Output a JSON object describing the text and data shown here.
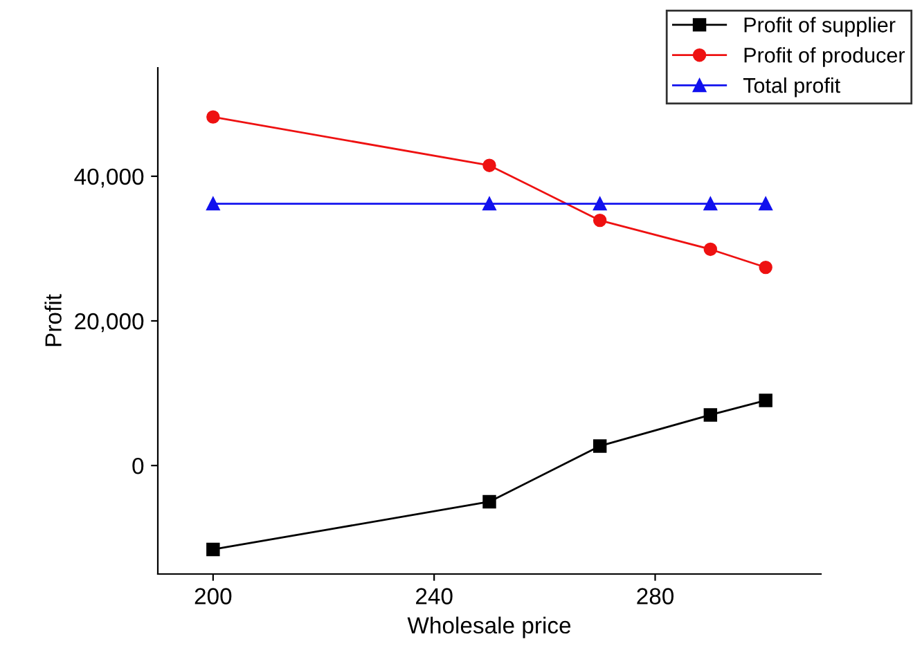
{
  "chart_data": {
    "type": "line",
    "xlabel": "Wholesale price",
    "ylabel": "Profit",
    "x": [
      200,
      250,
      270,
      290,
      300
    ],
    "xlim": [
      190,
      310
    ],
    "xticks": [
      200,
      240,
      280
    ],
    "ylim": [
      -15000,
      55000
    ],
    "yticks": [
      {
        "value": 0,
        "label": "0"
      },
      {
        "value": 20000,
        "label": "20,000"
      },
      {
        "value": 40000,
        "label": "40,000"
      }
    ],
    "series": [
      {
        "name": "Profit of supplier",
        "color": "#000000",
        "marker": "square",
        "values": [
          -11600,
          -5000,
          2700,
          7000,
          9000
        ]
      },
      {
        "name": "Profit of producer",
        "color": "#ee1111",
        "marker": "circle",
        "values": [
          48200,
          41500,
          33900,
          29900,
          27400
        ]
      },
      {
        "name": "Total profit",
        "color": "#1111ee",
        "marker": "triangle",
        "values": [
          36200,
          36200,
          36200,
          36200,
          36200
        ]
      }
    ],
    "grid": false,
    "legend": "top right",
    "line_style": "solid"
  }
}
